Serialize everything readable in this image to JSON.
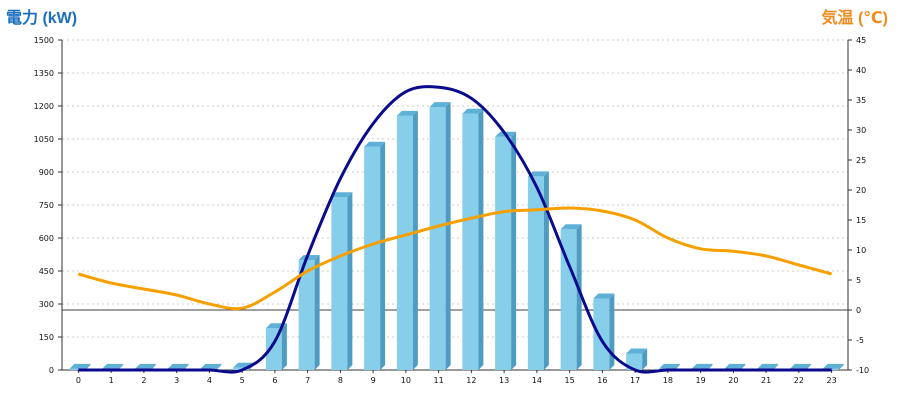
{
  "chart_data": {
    "type": "bar+line",
    "left_axis_label": "電力 (kW)",
    "right_axis_label": "気温 (℃)",
    "left_ylim": [
      0,
      1500
    ],
    "left_ticks": [
      0,
      150,
      300,
      450,
      600,
      750,
      900,
      1050,
      1200,
      1350,
      1500
    ],
    "right_ylim": [
      -10,
      45
    ],
    "right_ticks": [
      -10,
      -5,
      0,
      5,
      10,
      15,
      20,
      25,
      30,
      35,
      40,
      45
    ],
    "grid": true,
    "categories": [
      "0",
      "1",
      "2",
      "3",
      "4",
      "5",
      "6",
      "7",
      "8",
      "9",
      "10",
      "11",
      "12",
      "13",
      "14",
      "15",
      "16",
      "17",
      "18",
      "19",
      "20",
      "21",
      "22",
      "23"
    ],
    "bars": {
      "axis": "left",
      "color": "#87ceeb",
      "values": [
        5,
        5,
        5,
        5,
        5,
        10,
        190,
        500,
        785,
        1015,
        1155,
        1195,
        1165,
        1060,
        880,
        640,
        325,
        75,
        5,
        5,
        5,
        5,
        5,
        5
      ]
    },
    "power_line": {
      "axis": "left",
      "color": "#0a0a8c",
      "values": [
        -5,
        -5,
        -5,
        -5,
        -5,
        -5,
        130,
        520,
        870,
        1120,
        1265,
        1285,
        1235,
        1080,
        830,
        470,
        130,
        -10,
        -20,
        -20,
        -20,
        -20,
        -20,
        -20
      ]
    },
    "temperature_line": {
      "axis": "right",
      "color": "#f5a000",
      "values": [
        6,
        4.5,
        3.5,
        2.5,
        1,
        0.3,
        3,
        6.5,
        9,
        11,
        12.5,
        14,
        15.3,
        16.4,
        16.7,
        17,
        16.5,
        15,
        12,
        10.2,
        9.8,
        9,
        7.5,
        6
      ]
    }
  }
}
